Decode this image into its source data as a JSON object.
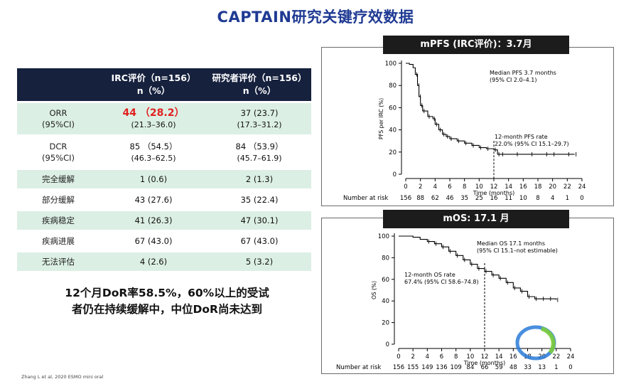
{
  "title": "CAPTAIN研究关键疗效数据",
  "table": {
    "col_irc": "IRC评价（n=156）",
    "col_irc_unit": "n（%）",
    "col_inv": "研究者评价（n=156）",
    "col_inv_unit": "n（%）",
    "rows": [
      {
        "label": "ORR",
        "label2": "(95%CI)",
        "irc": "44 （28.2）",
        "irc_ci": "(21.3–36.0)",
        "inv": "37 (23.7)",
        "inv_ci": "(17.3–31.2)"
      },
      {
        "label": "DCR",
        "label2": "(95%CI)",
        "irc": "85 （54.5）",
        "irc_ci": "(46.3–62.5)",
        "inv": "84 （53.9）",
        "inv_ci": "(45.7–61.9)"
      },
      {
        "label": "完全缓解",
        "irc": "1 (0.6)",
        "inv": "2 (1.3)"
      },
      {
        "label": "部分缓解",
        "irc": "43 (27.6)",
        "inv": "35 (22.4)"
      },
      {
        "label": "疾病稳定",
        "irc": "41 (26.3)",
        "inv": "47 (30.1)"
      },
      {
        "label": "疾病进展",
        "irc": "67 (43.0)",
        "inv": "67 (43.0)"
      },
      {
        "label": "无法评估",
        "irc": "4 (2.6)",
        "inv": "5 (3.2)"
      }
    ]
  },
  "summary_line1": "12个月DoR率58.5%，60%以上的受试",
  "summary_line2": "者仍在持续缓解中，中位DoR尚未达到",
  "source": "Zhang L et al, 2020 ESMO mini oral",
  "chart_data": [
    {
      "type": "line",
      "title": "mPFS (IRC评价)：3.7月",
      "ylabel": "PFS per IRC (%)",
      "xlabel": "Time (months)",
      "xlim": [
        0,
        24
      ],
      "ylim": [
        0,
        100
      ],
      "x_ticks": [
        0,
        2,
        4,
        6,
        8,
        10,
        12,
        14,
        16,
        18,
        20,
        22,
        24
      ],
      "y_ticks": [
        0,
        20,
        40,
        60,
        80,
        100
      ],
      "annotation_median_1": "Median PFS 3.7 months",
      "annotation_median_2": "(95% CI 2.0–4.1)",
      "annotation_12m_1": "12-month PFS rate",
      "annotation_12m_2": "22.0% (95% CI 15.1–29.7)",
      "risk_label": "Number at risk",
      "at_risk": [
        "156",
        "88",
        "62",
        "46",
        "35",
        "25",
        "16",
        "11",
        "10",
        "8",
        "4",
        "1",
        "0"
      ],
      "curve": [
        [
          0,
          100
        ],
        [
          0.5,
          99
        ],
        [
          1,
          96
        ],
        [
          1.3,
          90
        ],
        [
          1.6,
          80
        ],
        [
          1.8,
          70
        ],
        [
          2,
          62
        ],
        [
          2.3,
          57
        ],
        [
          3,
          52
        ],
        [
          3.7,
          50
        ],
        [
          4,
          45
        ],
        [
          4.5,
          40
        ],
        [
          5,
          36
        ],
        [
          5.5,
          34
        ],
        [
          6,
          32
        ],
        [
          7,
          30
        ],
        [
          8,
          28
        ],
        [
          9,
          26
        ],
        [
          10,
          24
        ],
        [
          11,
          23
        ],
        [
          12,
          22
        ],
        [
          12.5,
          18
        ],
        [
          13,
          18
        ],
        [
          15,
          18
        ],
        [
          17,
          18
        ],
        [
          19,
          18
        ],
        [
          20,
          18
        ],
        [
          22,
          18
        ],
        [
          23,
          18
        ]
      ]
    },
    {
      "type": "line",
      "title": "mOS: 17.1 月",
      "ylabel": "OS (%)",
      "xlabel": "Time (months)",
      "xlim": [
        0,
        24
      ],
      "ylim": [
        0,
        100
      ],
      "x_ticks": [
        0,
        2,
        4,
        6,
        8,
        10,
        12,
        14,
        16,
        18,
        20,
        22,
        24
      ],
      "y_ticks": [
        0,
        20,
        40,
        60,
        80,
        100
      ],
      "annotation_median_1": "Median OS 17.1 months",
      "annotation_median_2": "(95% CI 15.1–not estimable)",
      "annotation_12m_1": "12-month OS rate",
      "annotation_12m_2": "67.4% (95% CI 58.6–74.8)",
      "risk_label": "Number at risk",
      "at_risk": [
        "156",
        "155",
        "149",
        "136",
        "109",
        "84",
        "66",
        "59",
        "48",
        "33",
        "13",
        "1",
        "0"
      ],
      "curve": [
        [
          0,
          100
        ],
        [
          2,
          99
        ],
        [
          3,
          97
        ],
        [
          4,
          95
        ],
        [
          5,
          93
        ],
        [
          6,
          90
        ],
        [
          7,
          86
        ],
        [
          8,
          82
        ],
        [
          9,
          78
        ],
        [
          10,
          74
        ],
        [
          11,
          70
        ],
        [
          12,
          67.4
        ],
        [
          13,
          64
        ],
        [
          14,
          61
        ],
        [
          15,
          57
        ],
        [
          16,
          52
        ],
        [
          17,
          49
        ],
        [
          18,
          44
        ],
        [
          19,
          42
        ],
        [
          20,
          42
        ],
        [
          21,
          42
        ],
        [
          22,
          41
        ]
      ]
    }
  ]
}
